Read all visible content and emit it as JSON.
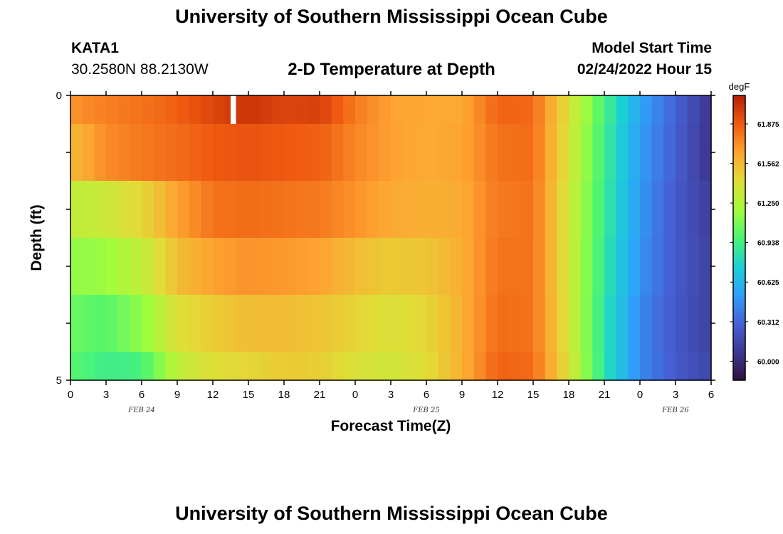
{
  "header": {
    "title": "University of Southern Mississippi Ocean Cube",
    "station_id": "KATA1",
    "station_coords": "30.2580N  88.2130W",
    "plot_title": "2-D Temperature at Depth",
    "model_start_label": "Model Start Time",
    "model_start_value": "02/24/2022 Hour 15"
  },
  "footer": {
    "title": "University of Southern Mississippi Ocean Cube"
  },
  "chart_data": {
    "type": "heatmap",
    "title": "2-D Temperature at Depth",
    "xlabel": "Forecast Time(Z)",
    "ylabel": "Depth (ft)",
    "x_tick_labels": [
      "0",
      "3",
      "6",
      "9",
      "12",
      "15",
      "18",
      "21",
      "0",
      "3",
      "6",
      "9",
      "12",
      "15",
      "18",
      "21",
      "0",
      "3",
      "6"
    ],
    "date_labels": [
      {
        "label": "FEB 24",
        "at_hour": 6
      },
      {
        "label": "FEB 25",
        "at_hour": 30
      },
      {
        "label": "FEB 26",
        "at_hour": 51
      }
    ],
    "x_range_hours": [
      0,
      54
    ],
    "y_tick_labels": [
      "0",
      "5"
    ],
    "y_range": [
      0,
      5
    ],
    "colorbar": {
      "unit": "degF",
      "range": [
        59.85,
        62.1
      ],
      "tick_labels": [
        "61.875",
        "61.562",
        "61.250",
        "60.938",
        "60.625",
        "60.312",
        "60.000"
      ],
      "tick_values": [
        61.875,
        61.562,
        61.25,
        60.938,
        60.625,
        60.312,
        60.0
      ]
    },
    "depth_layers": [
      {
        "top": 0.0,
        "bottom": 0.5
      },
      {
        "top": 0.5,
        "bottom": 1.5
      },
      {
        "top": 1.5,
        "bottom": 2.5
      },
      {
        "top": 2.5,
        "bottom": 3.5
      },
      {
        "top": 3.5,
        "bottom": 4.5
      },
      {
        "top": 4.5,
        "bottom": 5.0
      }
    ],
    "forecast_hours": [
      0,
      3,
      6,
      9,
      12,
      15,
      18,
      21,
      24,
      27,
      30,
      33,
      36,
      39,
      42,
      45,
      48,
      51,
      54
    ],
    "temperature_degF": [
      [
        61.7,
        61.76,
        61.8,
        61.86,
        61.95,
        62.02,
        61.95,
        61.97,
        61.78,
        61.65,
        61.63,
        61.62,
        61.85,
        61.83,
        61.4,
        60.95,
        60.55,
        60.3,
        60.05
      ],
      [
        61.56,
        61.72,
        61.78,
        61.82,
        61.88,
        61.9,
        61.88,
        61.86,
        61.74,
        61.66,
        61.62,
        61.64,
        61.8,
        61.82,
        61.38,
        60.92,
        60.52,
        60.28,
        60.05
      ],
      [
        61.3,
        61.34,
        61.45,
        61.65,
        61.8,
        61.82,
        61.8,
        61.78,
        61.7,
        61.62,
        61.6,
        61.62,
        61.78,
        61.8,
        61.36,
        60.9,
        60.5,
        60.26,
        60.1
      ],
      [
        61.15,
        61.18,
        61.3,
        61.55,
        61.65,
        61.7,
        61.68,
        61.65,
        61.55,
        61.5,
        61.52,
        61.6,
        61.8,
        61.8,
        61.36,
        60.88,
        60.48,
        60.26,
        60.12
      ],
      [
        61.05,
        61.0,
        61.15,
        61.4,
        61.5,
        61.55,
        61.55,
        61.52,
        61.46,
        61.4,
        61.45,
        61.6,
        61.82,
        61.8,
        61.38,
        60.85,
        60.45,
        60.25,
        60.12
      ],
      [
        61.0,
        60.92,
        60.95,
        61.3,
        61.42,
        61.45,
        61.5,
        61.48,
        61.4,
        61.36,
        61.42,
        61.6,
        61.85,
        61.82,
        61.4,
        60.85,
        60.45,
        60.26,
        60.15
      ]
    ],
    "missing_cell": {
      "depth_layer": 0,
      "hour": 13.5
    }
  }
}
